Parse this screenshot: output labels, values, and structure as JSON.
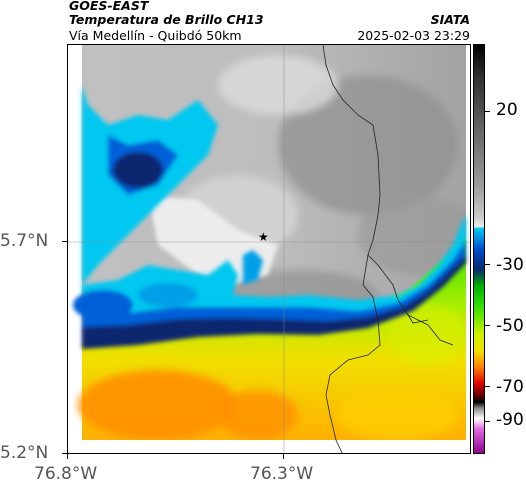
{
  "header": {
    "satellite": "GOES-EAST",
    "product": "Temperatura de Brillo CH13",
    "region": "Vía Medellín - Quibdó 50km",
    "agency": "SIATA",
    "datetime": "2025-02-03 23:29"
  },
  "axes": {
    "y_labels": [
      "5.7°N",
      "5.2°N"
    ],
    "x_labels": [
      "76.8°W",
      "76.3°W"
    ]
  },
  "colorbar": {
    "labels": [
      "20",
      "-30",
      "-50",
      "-70",
      "-90"
    ]
  },
  "marker": {
    "symbol": "★"
  },
  "colors": {
    "cold_top": "#082870",
    "cyan": "#00c8f0",
    "green": "#30e000",
    "yellow": "#e8f000",
    "orange": "#ff9000",
    "cloud_gray": "#b4b4b4"
  }
}
